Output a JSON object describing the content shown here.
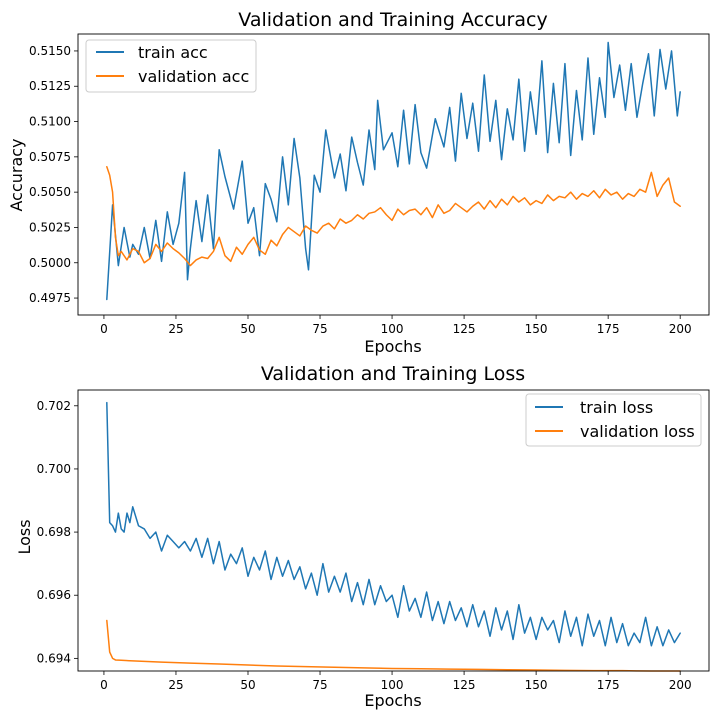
{
  "colors": {
    "train": "#1f77b4",
    "validation": "#ff7f0e"
  },
  "chart_data": [
    {
      "type": "line",
      "title": "Validation and Training Accuracy",
      "xlabel": "Epochs",
      "ylabel": "Accuracy",
      "xlim": [
        -9,
        210
      ],
      "ylim": [
        0.4963,
        0.5162
      ],
      "xticks": [
        0,
        25,
        50,
        75,
        100,
        125,
        150,
        175,
        200
      ],
      "yticks": [
        0.4975,
        0.5,
        0.5025,
        0.505,
        0.5075,
        0.51,
        0.5125,
        0.515
      ],
      "ytick_labels": [
        "0.4975",
        "0.5000",
        "0.5025",
        "0.5050",
        "0.5075",
        "0.5100",
        "0.5125",
        "0.5150"
      ],
      "legend_position": "top-left",
      "series": [
        {
          "name": "train acc",
          "color_key": "train",
          "x": [
            1,
            3,
            5,
            7,
            9,
            10,
            12,
            14,
            16,
            18,
            20,
            22,
            24,
            26,
            28,
            29,
            30,
            32,
            34,
            36,
            38,
            40,
            42,
            45,
            48,
            50,
            52,
            54,
            56,
            58,
            60,
            62,
            64,
            66,
            68,
            70,
            71,
            73,
            75,
            77,
            80,
            82,
            84,
            86,
            88,
            90,
            92,
            94,
            95,
            97,
            100,
            102,
            104,
            106,
            108,
            110,
            112,
            115,
            118,
            120,
            122,
            124,
            126,
            128,
            130,
            132,
            134,
            136,
            138,
            140,
            142,
            144,
            146,
            148,
            150,
            152,
            154,
            156,
            158,
            160,
            162,
            164,
            166,
            168,
            170,
            172,
            174,
            175,
            177,
            179,
            181,
            183,
            185,
            187,
            189,
            191,
            193,
            195,
            197,
            199,
            200
          ],
          "y": [
            0.4974,
            0.5041,
            0.4998,
            0.5025,
            0.5004,
            0.5013,
            0.5006,
            0.5025,
            0.5003,
            0.503,
            0.5001,
            0.5036,
            0.5013,
            0.5028,
            0.5064,
            0.4988,
            0.501,
            0.5044,
            0.5015,
            0.5048,
            0.501,
            0.508,
            0.5061,
            0.5038,
            0.5072,
            0.5028,
            0.5039,
            0.5005,
            0.5056,
            0.5045,
            0.5029,
            0.5075,
            0.5041,
            0.5088,
            0.506,
            0.501,
            0.4995,
            0.5062,
            0.505,
            0.5094,
            0.506,
            0.5077,
            0.5051,
            0.5089,
            0.5071,
            0.5055,
            0.5094,
            0.5066,
            0.5115,
            0.508,
            0.5092,
            0.5068,
            0.5108,
            0.507,
            0.5112,
            0.5078,
            0.5067,
            0.5102,
            0.5082,
            0.511,
            0.5072,
            0.512,
            0.5088,
            0.5113,
            0.5079,
            0.5133,
            0.5086,
            0.5115,
            0.5073,
            0.5109,
            0.5087,
            0.513,
            0.5079,
            0.5121,
            0.5091,
            0.5143,
            0.5078,
            0.5127,
            0.5085,
            0.5141,
            0.5076,
            0.5122,
            0.5087,
            0.5145,
            0.5091,
            0.5131,
            0.5103,
            0.5156,
            0.5117,
            0.514,
            0.5108,
            0.5141,
            0.5103,
            0.5127,
            0.5148,
            0.5104,
            0.5151,
            0.5123,
            0.515,
            0.5104,
            0.5121
          ]
        },
        {
          "name": "validation acc",
          "color_key": "validation",
          "x": [
            1,
            2,
            3,
            4,
            5,
            6,
            8,
            10,
            12,
            14,
            16,
            18,
            20,
            22,
            24,
            26,
            28,
            30,
            32,
            34,
            36,
            38,
            40,
            42,
            44,
            46,
            48,
            50,
            52,
            54,
            56,
            58,
            60,
            62,
            64,
            66,
            68,
            70,
            72,
            74,
            76,
            78,
            80,
            82,
            84,
            86,
            88,
            90,
            92,
            94,
            96,
            98,
            100,
            102,
            104,
            106,
            108,
            110,
            112,
            114,
            116,
            118,
            120,
            122,
            124,
            126,
            128,
            130,
            132,
            134,
            136,
            138,
            140,
            142,
            144,
            146,
            148,
            150,
            152,
            154,
            156,
            158,
            160,
            162,
            164,
            166,
            168,
            170,
            172,
            174,
            176,
            178,
            180,
            182,
            184,
            186,
            188,
            190,
            192,
            194,
            196,
            198,
            200
          ],
          "y": [
            0.5068,
            0.5062,
            0.505,
            0.5018,
            0.5005,
            0.5008,
            0.5002,
            0.501,
            0.5008,
            0.5,
            0.5003,
            0.5013,
            0.5008,
            0.5014,
            0.501,
            0.5007,
            0.5003,
            0.4998,
            0.5002,
            0.5004,
            0.5003,
            0.5008,
            0.5018,
            0.5005,
            0.5001,
            0.5011,
            0.5006,
            0.5013,
            0.5018,
            0.5009,
            0.5006,
            0.5016,
            0.5012,
            0.502,
            0.5025,
            0.5022,
            0.5019,
            0.5026,
            0.5023,
            0.5021,
            0.5026,
            0.5028,
            0.5024,
            0.5031,
            0.5028,
            0.503,
            0.5034,
            0.5031,
            0.5035,
            0.5036,
            0.5039,
            0.5034,
            0.503,
            0.5038,
            0.5034,
            0.5037,
            0.5038,
            0.5034,
            0.5039,
            0.5032,
            0.5041,
            0.5035,
            0.5037,
            0.5042,
            0.5039,
            0.5036,
            0.504,
            0.5043,
            0.5038,
            0.5044,
            0.5039,
            0.5045,
            0.5041,
            0.5047,
            0.5043,
            0.5046,
            0.5041,
            0.5044,
            0.5042,
            0.5048,
            0.5044,
            0.5047,
            0.5046,
            0.505,
            0.5045,
            0.5049,
            0.5047,
            0.5051,
            0.5046,
            0.5052,
            0.5048,
            0.505,
            0.5045,
            0.5049,
            0.5047,
            0.5052,
            0.505,
            0.5064,
            0.5047,
            0.5055,
            0.506,
            0.5043,
            0.504
          ]
        }
      ]
    },
    {
      "type": "line",
      "title": "Validation and Training Loss",
      "xlabel": "Epochs",
      "ylabel": "Loss",
      "xlim": [
        -9,
        210
      ],
      "ylim": [
        0.6936,
        0.7025
      ],
      "xticks": [
        0,
        25,
        50,
        75,
        100,
        125,
        150,
        175,
        200
      ],
      "yticks": [
        0.694,
        0.696,
        0.698,
        0.7,
        0.702
      ],
      "ytick_labels": [
        "0.694",
        "0.696",
        "0.698",
        "0.700",
        "0.702"
      ],
      "legend_position": "top-right",
      "series": [
        {
          "name": "train loss",
          "color_key": "train",
          "x": [
            1,
            2,
            3,
            4,
            5,
            6,
            7,
            8,
            9,
            10,
            12,
            14,
            16,
            18,
            20,
            22,
            24,
            26,
            28,
            30,
            32,
            34,
            36,
            38,
            40,
            42,
            44,
            46,
            48,
            50,
            52,
            54,
            56,
            58,
            60,
            62,
            64,
            66,
            68,
            70,
            72,
            74,
            76,
            78,
            80,
            82,
            84,
            86,
            88,
            90,
            92,
            94,
            96,
            98,
            100,
            102,
            104,
            106,
            108,
            110,
            112,
            114,
            116,
            118,
            120,
            122,
            124,
            126,
            128,
            130,
            132,
            134,
            136,
            138,
            140,
            142,
            144,
            146,
            148,
            150,
            152,
            154,
            156,
            158,
            160,
            162,
            164,
            166,
            168,
            170,
            172,
            174,
            176,
            178,
            180,
            182,
            184,
            186,
            188,
            190,
            192,
            194,
            196,
            198,
            200
          ],
          "y": [
            0.7021,
            0.6983,
            0.6982,
            0.698,
            0.6986,
            0.6981,
            0.698,
            0.6986,
            0.6983,
            0.6988,
            0.6982,
            0.6981,
            0.6978,
            0.698,
            0.6974,
            0.6979,
            0.6977,
            0.6975,
            0.6977,
            0.6974,
            0.6978,
            0.6972,
            0.6978,
            0.697,
            0.6977,
            0.6968,
            0.6973,
            0.697,
            0.6975,
            0.6966,
            0.6972,
            0.6968,
            0.6974,
            0.6965,
            0.6972,
            0.6966,
            0.6971,
            0.6965,
            0.6969,
            0.6962,
            0.6967,
            0.696,
            0.697,
            0.6961,
            0.6966,
            0.6961,
            0.6967,
            0.6958,
            0.6964,
            0.6957,
            0.6965,
            0.6957,
            0.6963,
            0.6958,
            0.696,
            0.6953,
            0.6963,
            0.6955,
            0.6959,
            0.6953,
            0.6961,
            0.6952,
            0.6958,
            0.6951,
            0.6958,
            0.6952,
            0.6956,
            0.695,
            0.6957,
            0.695,
            0.6955,
            0.6947,
            0.6956,
            0.6949,
            0.6955,
            0.6946,
            0.6957,
            0.6948,
            0.6953,
            0.6946,
            0.6953,
            0.6949,
            0.6952,
            0.6945,
            0.6955,
            0.6947,
            0.6953,
            0.6944,
            0.6954,
            0.6947,
            0.6952,
            0.6944,
            0.6953,
            0.6945,
            0.6951,
            0.6944,
            0.6948,
            0.6945,
            0.6953,
            0.6944,
            0.695,
            0.6944,
            0.6949,
            0.6945,
            0.6948
          ]
        },
        {
          "name": "validation loss",
          "color_key": "validation",
          "x": [
            1,
            2,
            3,
            4,
            6,
            10,
            20,
            30,
            40,
            50,
            60,
            70,
            80,
            90,
            100,
            110,
            120,
            130,
            140,
            150,
            160,
            170,
            180,
            190,
            200
          ],
          "y": [
            0.6952,
            0.6942,
            0.694,
            0.69395,
            0.69394,
            0.69392,
            0.69388,
            0.69385,
            0.69382,
            0.69379,
            0.69376,
            0.69374,
            0.69372,
            0.6937,
            0.69368,
            0.69367,
            0.69366,
            0.69365,
            0.69364,
            0.69363,
            0.69362,
            0.69361,
            0.69361,
            0.6936,
            0.6936
          ]
        }
      ]
    }
  ]
}
